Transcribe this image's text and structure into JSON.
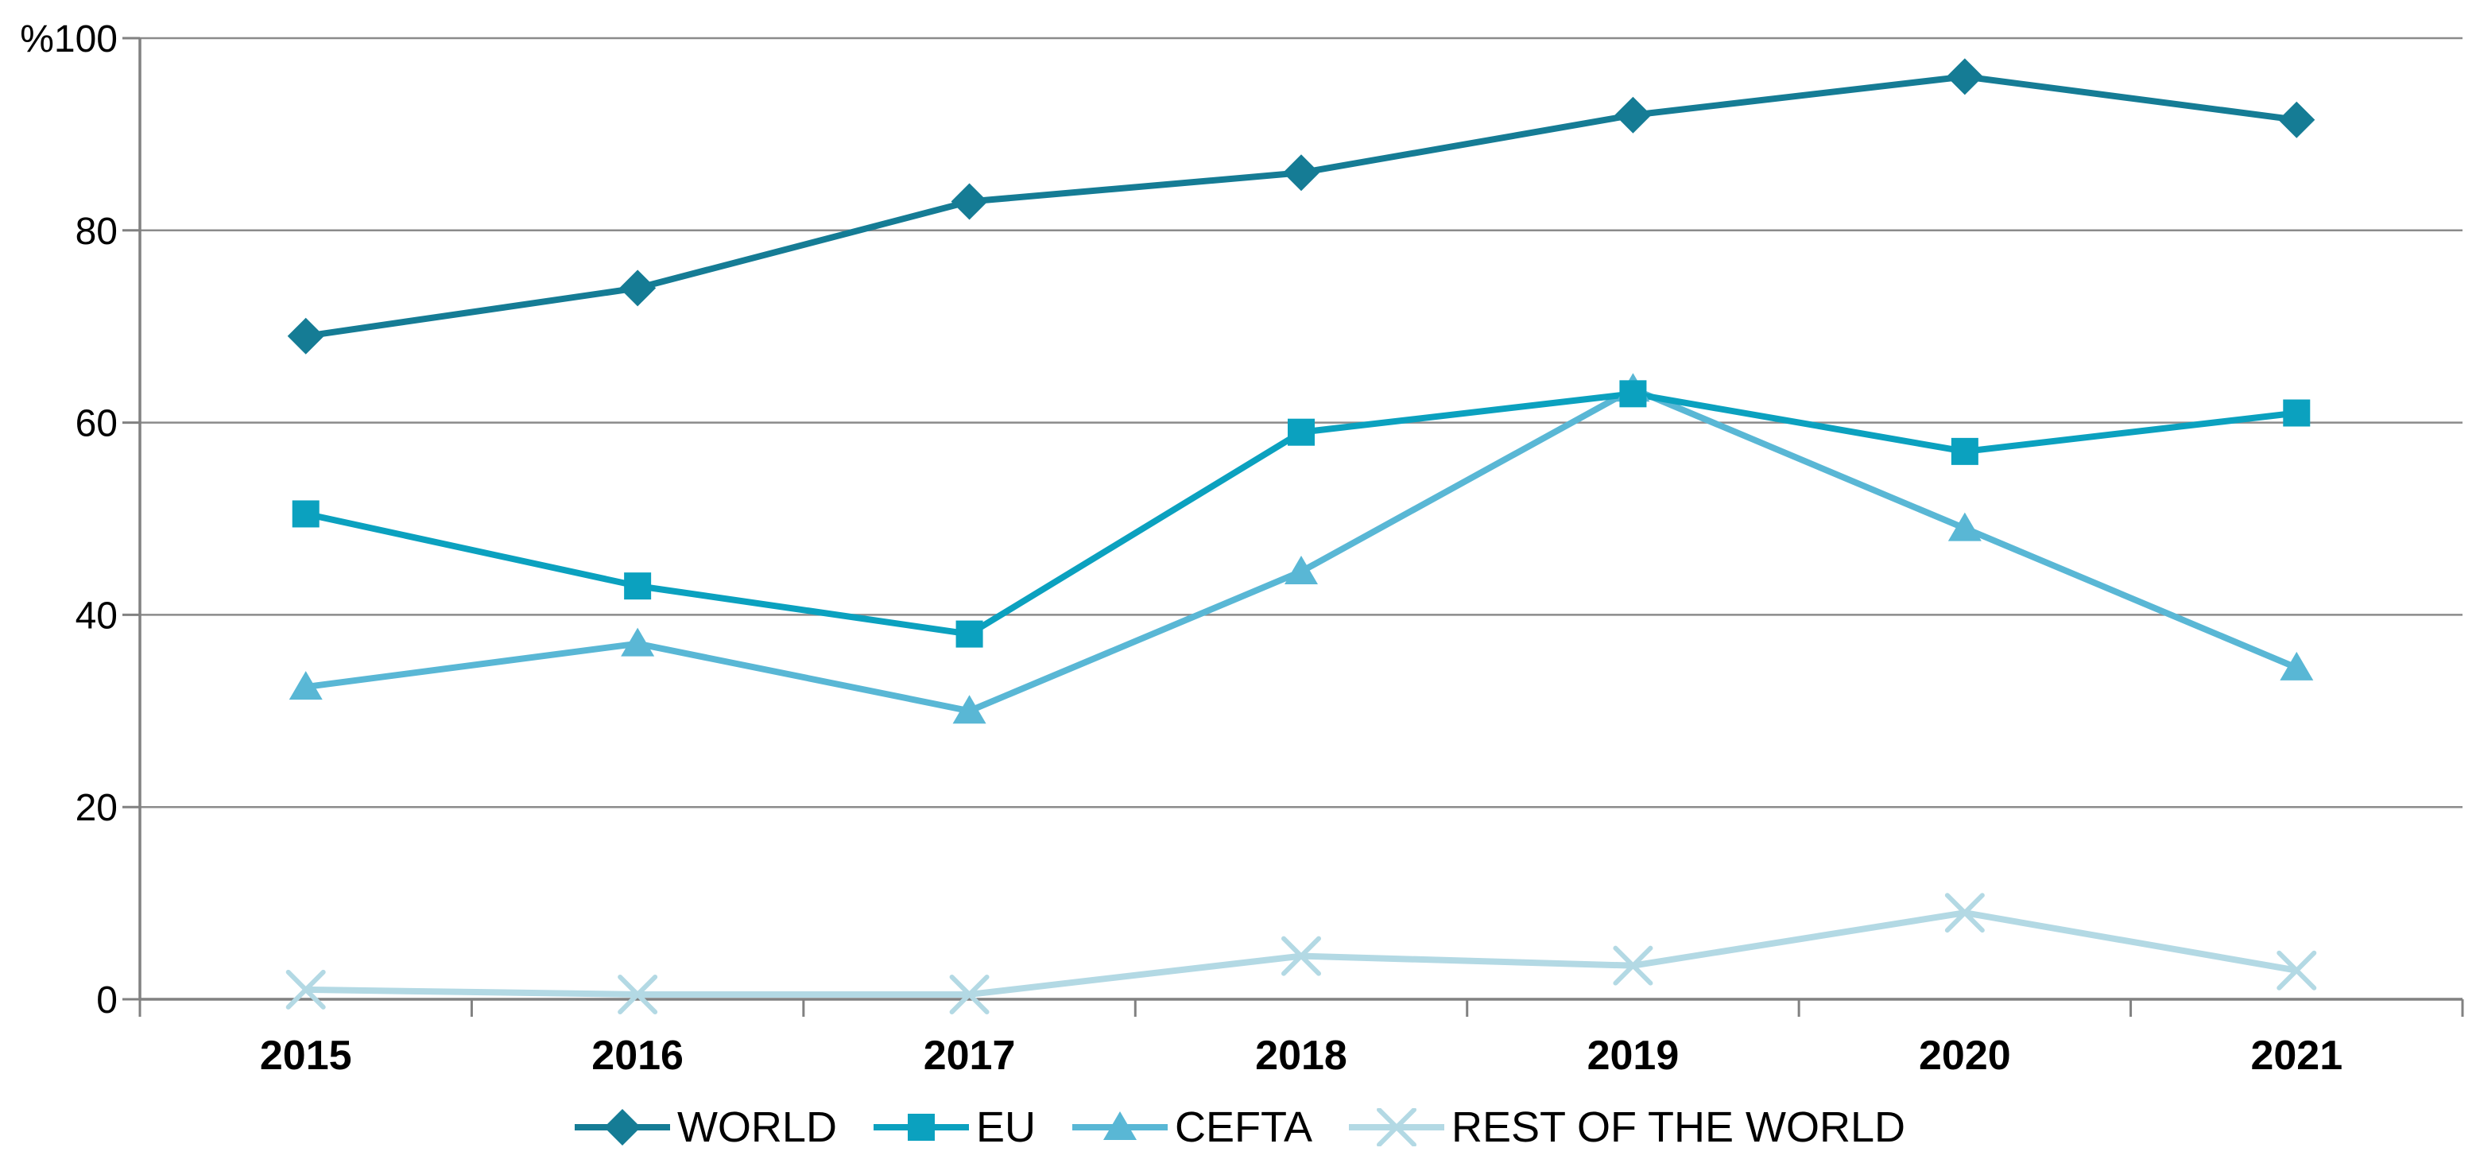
{
  "chart_data": {
    "type": "line",
    "title": "",
    "categories": [
      "2015",
      "2016",
      "2017",
      "2018",
      "2019",
      "2020",
      "2021"
    ],
    "series": [
      {
        "name": "WORLD",
        "color": "#157C95",
        "marker": "diamond",
        "values": [
          69,
          74,
          83,
          86,
          92,
          96,
          91.5
        ]
      },
      {
        "name": "EU",
        "color": "#0BA1BF",
        "marker": "square",
        "values": [
          50.5,
          43,
          38,
          59,
          63,
          57,
          61
        ]
      },
      {
        "name": "CEFTA",
        "color": "#59B7D5",
        "marker": "triangle",
        "values": [
          32.5,
          37,
          30,
          44.5,
          63.5,
          49,
          34.5
        ]
      },
      {
        "name": "REST OF THE WORLD",
        "color": "#B3D9E4",
        "marker": "x",
        "values": [
          1,
          0.5,
          0.5,
          4.5,
          3.5,
          9,
          3
        ]
      }
    ],
    "y_axis": {
      "unit": "%",
      "min": 0,
      "max": 100,
      "ticks": [
        0,
        20,
        40,
        60,
        80,
        100
      ]
    },
    "x_label": "",
    "y_label": "",
    "grid": true,
    "legend_position": "bottom",
    "axis_color": "#818181",
    "grid_color": "#8B8B8B",
    "text_color": "#000000"
  }
}
